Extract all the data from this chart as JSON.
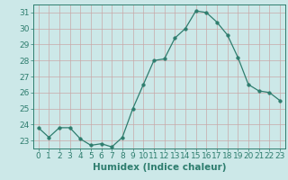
{
  "x": [
    0,
    1,
    2,
    3,
    4,
    5,
    6,
    7,
    8,
    9,
    10,
    11,
    12,
    13,
    14,
    15,
    16,
    17,
    18,
    19,
    20,
    21,
    22,
    23
  ],
  "y": [
    23.8,
    23.2,
    23.8,
    23.8,
    23.1,
    22.7,
    22.8,
    22.6,
    23.2,
    25.0,
    26.5,
    28.0,
    28.1,
    29.4,
    30.0,
    31.1,
    31.0,
    30.4,
    29.6,
    28.2,
    26.5,
    26.1,
    26.0,
    25.5
  ],
  "xlabel": "Humidex (Indice chaleur)",
  "xlim": [
    -0.5,
    23.5
  ],
  "ylim": [
    22.5,
    31.5
  ],
  "yticks": [
    23,
    24,
    25,
    26,
    27,
    28,
    29,
    30,
    31
  ],
  "xticks": [
    0,
    1,
    2,
    3,
    4,
    5,
    6,
    7,
    8,
    9,
    10,
    11,
    12,
    13,
    14,
    15,
    16,
    17,
    18,
    19,
    20,
    21,
    22,
    23
  ],
  "line_color": "#2e7d6e",
  "marker_size": 2.5,
  "bg_color": "#cce8e8",
  "grid_color": "#b0d0d0",
  "tick_color": "#2e7d6e",
  "label_color": "#2e7d6e",
  "font_size_tick": 6.5,
  "font_size_xlabel": 7.5
}
